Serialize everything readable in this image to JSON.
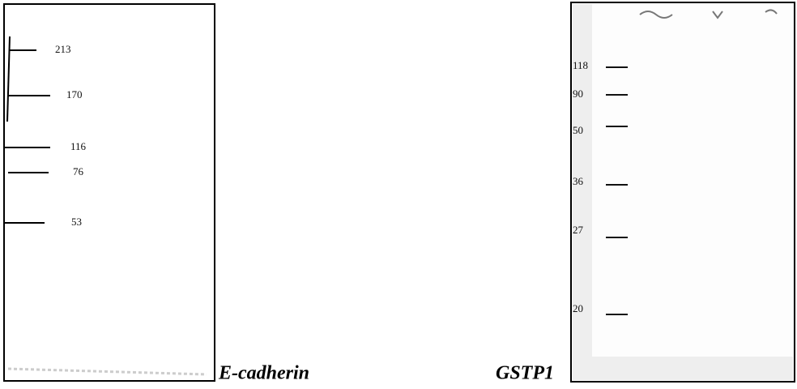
{
  "left_panel": {
    "caption": "E-cadherin",
    "markers": [
      213,
      170,
      116,
      76,
      53
    ]
  },
  "right_panel": {
    "caption": "GSTP1",
    "markers": [
      118,
      90,
      50,
      36,
      27,
      20
    ]
  }
}
